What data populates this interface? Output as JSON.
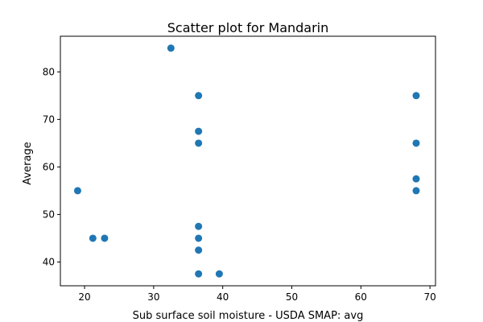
{
  "chart_data": {
    "type": "scatter",
    "title": "Scatter plot for Mandarin",
    "xlabel": "Sub surface soil moisture - USDA SMAP: avg",
    "ylabel": "Average",
    "xlim": [
      16.5,
      70.8
    ],
    "ylim": [
      35.0,
      87.5
    ],
    "xticks": [
      20,
      30,
      40,
      50,
      60,
      70
    ],
    "yticks": [
      40,
      50,
      60,
      70,
      80
    ],
    "grid": false,
    "marker_color": "#1f77b4",
    "points": [
      {
        "x": 19.0,
        "y": 55.0
      },
      {
        "x": 21.2,
        "y": 45.0
      },
      {
        "x": 22.9,
        "y": 45.0
      },
      {
        "x": 32.5,
        "y": 85.0
      },
      {
        "x": 36.5,
        "y": 75.0
      },
      {
        "x": 36.5,
        "y": 67.5
      },
      {
        "x": 36.5,
        "y": 65.0
      },
      {
        "x": 36.5,
        "y": 47.5
      },
      {
        "x": 36.5,
        "y": 45.0
      },
      {
        "x": 36.5,
        "y": 42.5
      },
      {
        "x": 36.5,
        "y": 37.5
      },
      {
        "x": 39.5,
        "y": 37.5
      },
      {
        "x": 68.0,
        "y": 75.0
      },
      {
        "x": 68.0,
        "y": 65.0
      },
      {
        "x": 68.0,
        "y": 57.5
      },
      {
        "x": 68.0,
        "y": 55.0
      }
    ]
  }
}
